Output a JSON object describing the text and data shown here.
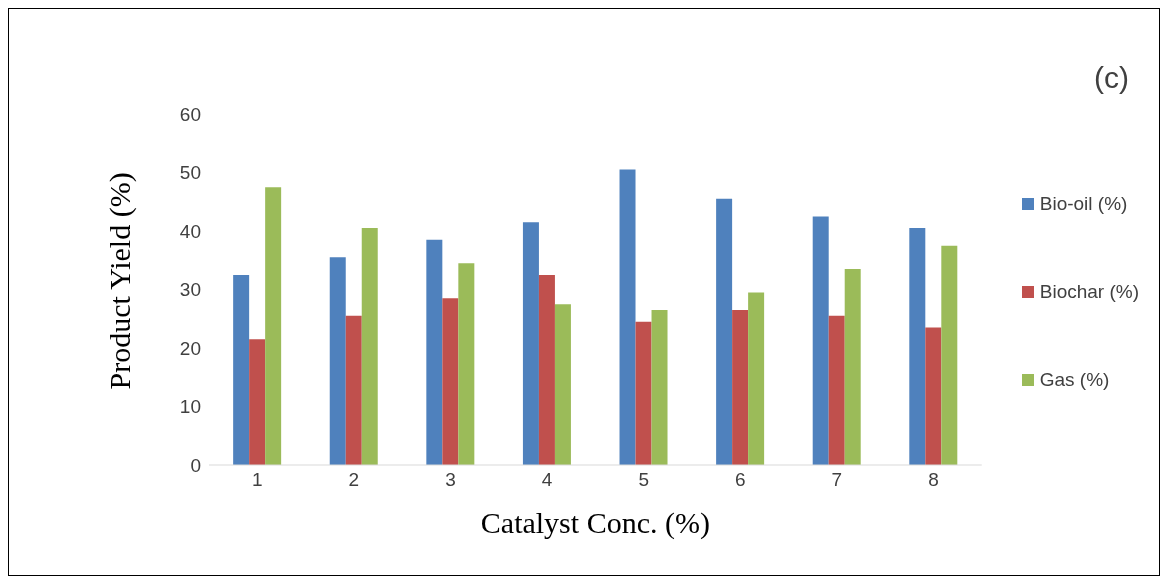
{
  "chart_data": {
    "type": "bar",
    "xlabel": "Catalyst Conc. (%)",
    "ylabel": "Product Yield (%)",
    "annotations": [
      "(c)"
    ],
    "categories": [
      "1",
      "2",
      "3",
      "4",
      "5",
      "6",
      "7",
      "8"
    ],
    "series": [
      {
        "name": "Bio-oil (%)",
        "color": "#4f81bd",
        "values": [
          32.5,
          35.5,
          38.5,
          41.5,
          50.5,
          45.5,
          42.5,
          40.5
        ]
      },
      {
        "name": "Biochar (%)",
        "color": "#c0504d",
        "values": [
          21.5,
          25.5,
          28.5,
          32.5,
          24.5,
          26.5,
          25.5,
          23.5
        ]
      },
      {
        "name": "Gas (%)",
        "color": "#9bbb59",
        "values": [
          47.5,
          40.5,
          34.5,
          27.5,
          26.5,
          29.5,
          33.5,
          37.5
        ]
      }
    ],
    "ylim": [
      0,
      60
    ],
    "yticks": [
      0,
      10,
      20,
      30,
      40,
      50,
      60
    ],
    "grid": false,
    "legend": "right"
  }
}
